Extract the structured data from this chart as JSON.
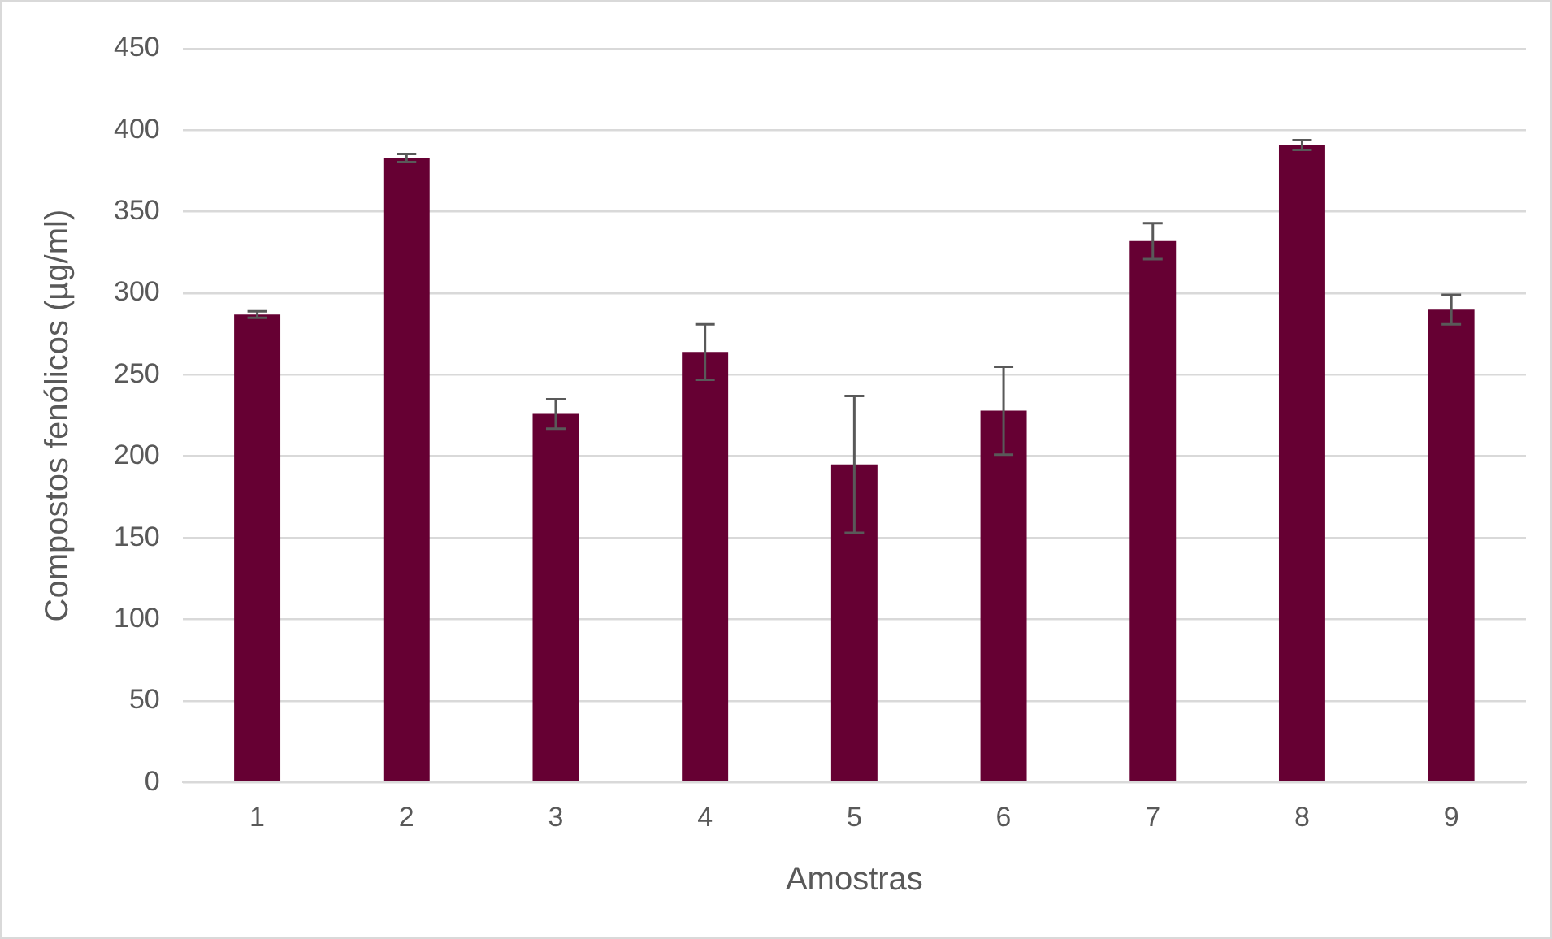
{
  "chart_data": {
    "type": "bar",
    "xlabel": "Amostras",
    "ylabel": "Compostos fenólicos (µg/ml)",
    "categories": [
      "1",
      "2",
      "3",
      "4",
      "5",
      "6",
      "7",
      "8",
      "9"
    ],
    "values": [
      287,
      383,
      226,
      264,
      195,
      228,
      332,
      391,
      290
    ],
    "errors": [
      2,
      2.5,
      9,
      17,
      42,
      27,
      11,
      3,
      9
    ],
    "color": "#660033",
    "ylim": [
      0,
      450
    ],
    "yticks": [
      0,
      50,
      100,
      150,
      200,
      250,
      300,
      350,
      400,
      450
    ],
    "grid": "y",
    "legend": false
  }
}
